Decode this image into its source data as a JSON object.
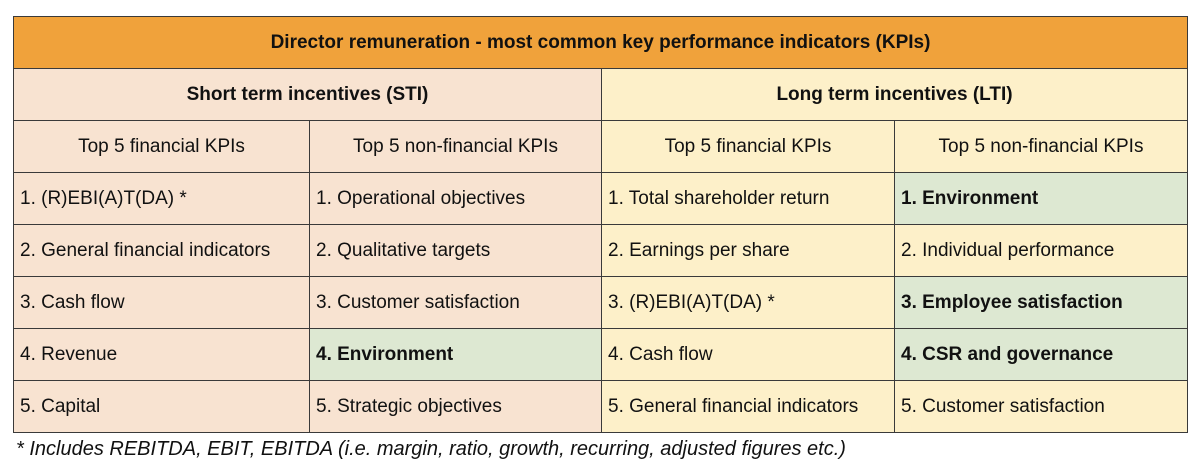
{
  "title": "Director remuneration - most common key performance indicators (KPIs)",
  "sti": {
    "heading": "Short term incentives (STI)",
    "financial_header": "Top 5 financial KPIs",
    "nonfinancial_header": "Top 5 non-financial KPIs",
    "financial": [
      "1. (R)EBI(A)T(DA) *",
      "2. General financial indicators",
      "3. Cash flow",
      "4. Revenue",
      "5. Capital"
    ],
    "nonfinancial": [
      "1. Operational objectives",
      "2. Qualitative targets",
      "3. Customer satisfaction",
      "4. Environment",
      "5. Strategic objectives"
    ]
  },
  "lti": {
    "heading": "Long term incentives (LTI)",
    "financial_header": "Top 5 financial KPIs",
    "nonfinancial_header": "Top 5 non-financial KPIs",
    "financial": [
      "1. Total shareholder return",
      "2. Earnings per share",
      "3. (R)EBI(A)T(DA) *",
      "4. Cash flow",
      "5. General financial indicators"
    ],
    "nonfinancial": [
      "1. Environment",
      "2. Individual performance",
      "3. Employee satisfaction",
      "4. CSR and governance",
      "5. Customer satisfaction"
    ]
  },
  "footnote": "* Includes REBITDA, EBIT, EBITDA (i.e. margin, ratio, growth, recurring, adjusted figures etc.)",
  "colors": {
    "title_bg": "#f0a23b",
    "sti_bg": "#f8e3d1",
    "lti_bg": "#fdf0c9",
    "highlight_bg": "#dde8d2"
  }
}
